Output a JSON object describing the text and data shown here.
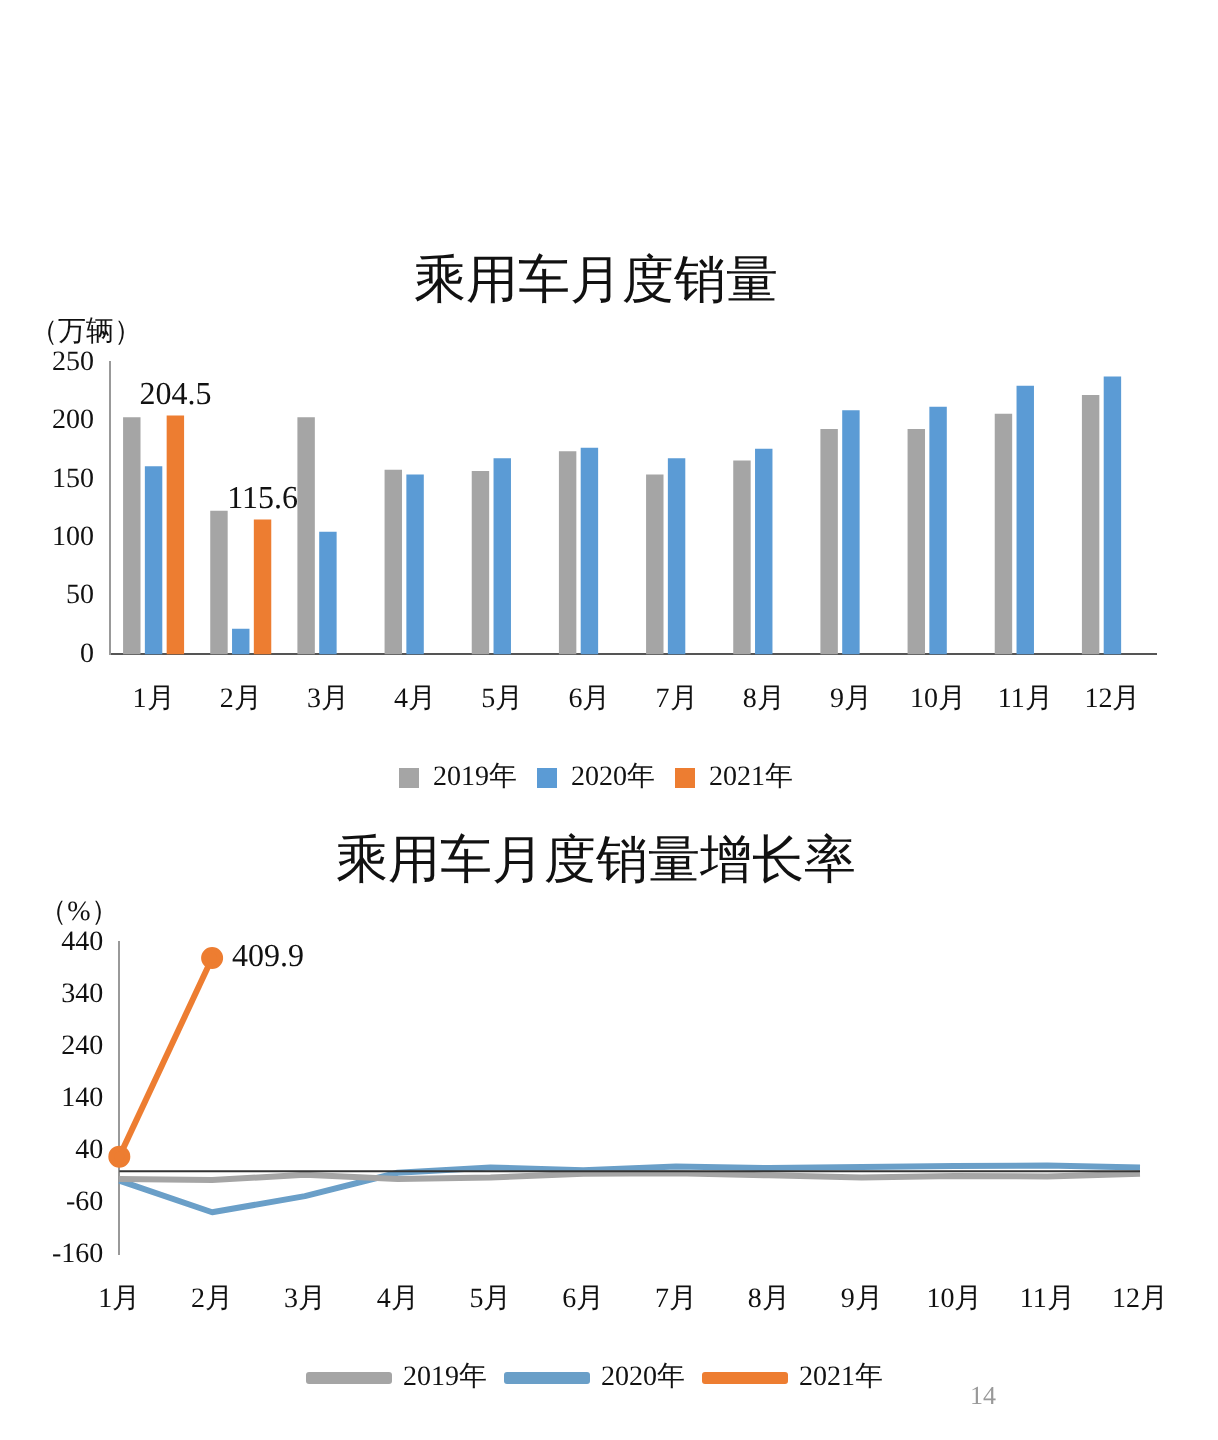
{
  "chart_data": [
    {
      "type": "bar",
      "title": "乘用车月度销量",
      "ylabel": "（万辆）",
      "categories": [
        "1月",
        "2月",
        "3月",
        "4月",
        "5月",
        "6月",
        "7月",
        "8月",
        "9月",
        "10月",
        "11月",
        "12月"
      ],
      "series": [
        {
          "name": "2019年",
          "color": "#a5a5a5",
          "values": [
            203,
            123,
            203,
            158,
            157,
            174,
            154,
            166,
            193,
            193,
            206,
            222
          ]
        },
        {
          "name": "2020年",
          "color": "#5b9bd5",
          "values": [
            161,
            22,
            105,
            154,
            168,
            177,
            168,
            176,
            209,
            212,
            230,
            238
          ]
        },
        {
          "name": "2021年",
          "color": "#ed7d31",
          "values": [
            204.5,
            115.6,
            null,
            null,
            null,
            null,
            null,
            null,
            null,
            null,
            null,
            null
          ],
          "value_labels": [
            "204.5",
            "115.6",
            null,
            null,
            null,
            null,
            null,
            null,
            null,
            null,
            null,
            null
          ]
        }
      ],
      "ylim": [
        0,
        250
      ],
      "yticks": [
        0,
        50,
        100,
        150,
        200,
        250
      ],
      "grid": false,
      "legend": "bottom"
    },
    {
      "type": "line",
      "title": "乘用车月度销量增长率",
      "ylabel": "（%）",
      "categories": [
        "1月",
        "2月",
        "3月",
        "4月",
        "5月",
        "6月",
        "7月",
        "8月",
        "9月",
        "10月",
        "11月",
        "12月"
      ],
      "series": [
        {
          "name": "2019年",
          "color": "#a5a5a5",
          "marker": "none",
          "values": [
            -15,
            -17,
            -7,
            -15,
            -12,
            -5,
            -4,
            -8,
            -12,
            -9,
            -10,
            -5
          ]
        },
        {
          "name": "2020年",
          "color": "#6a9fc8",
          "marker": "none",
          "values": [
            -18,
            -79,
            -48,
            -3,
            7,
            2,
            9,
            6,
            8,
            10,
            11,
            7
          ]
        },
        {
          "name": "2021年",
          "color": "#ed7d31",
          "marker": "circle",
          "values": [
            28,
            409.9,
            null,
            null,
            null,
            null,
            null,
            null,
            null,
            null,
            null,
            null
          ],
          "value_labels": [
            null,
            "409.9",
            null,
            null,
            null,
            null,
            null,
            null,
            null,
            null,
            null,
            null
          ]
        }
      ],
      "ylim": [
        -160,
        440
      ],
      "yticks": [
        -160,
        -60,
        40,
        140,
        240,
        340,
        440
      ],
      "grid": false,
      "legend": "bottom",
      "ref_lines": [
        {
          "axis": "y",
          "value": 0,
          "color": "#333333"
        }
      ],
      "annotations": [
        "14"
      ]
    }
  ]
}
